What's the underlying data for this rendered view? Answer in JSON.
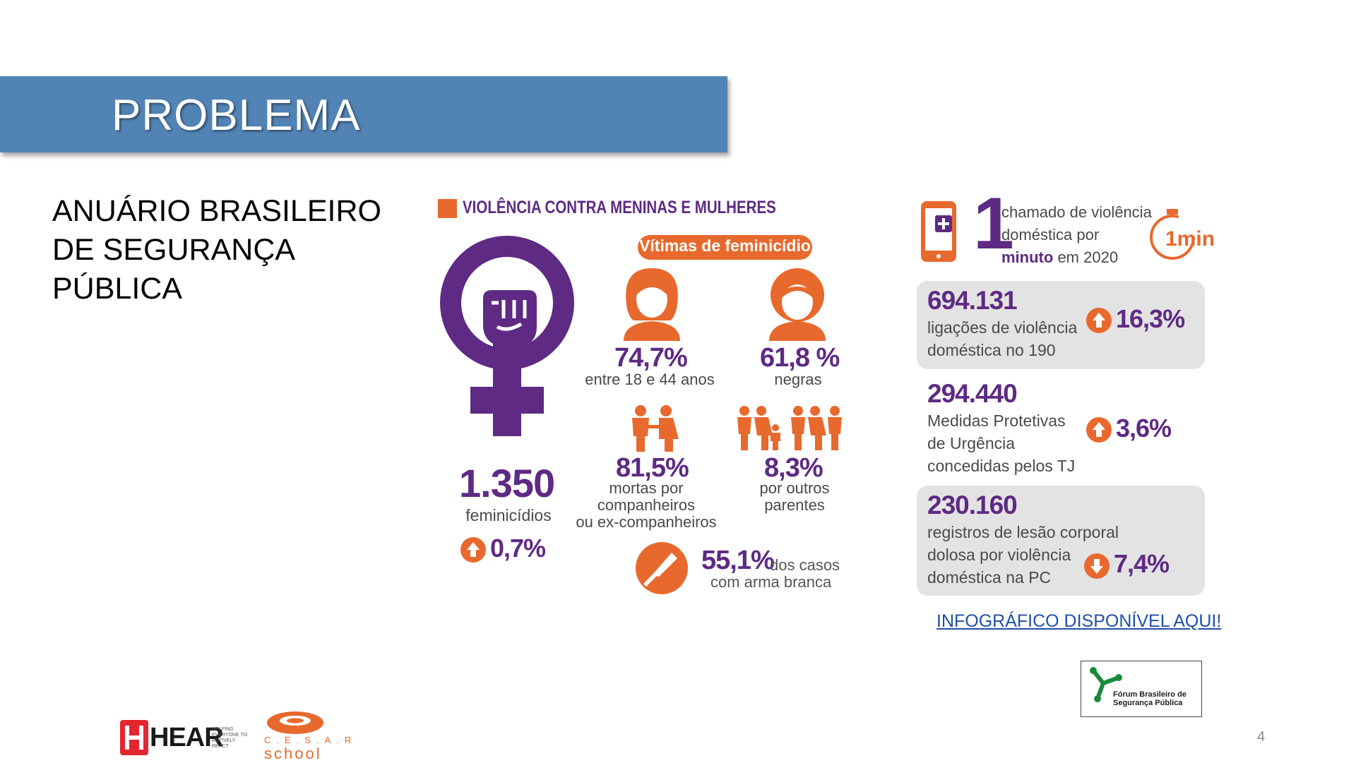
{
  "slide": {
    "title": "PROBLEMA",
    "subtitle_lines": [
      "ANUÁRIO BRASILEIRO",
      "DE SEGURANÇA",
      "PÚBLICA"
    ],
    "page_number": "4",
    "link_text": "INFOGRÁFICO DISPONÍVEL AQUI!"
  },
  "infographic": {
    "header": "VIOLÊNCIA CONTRA MENINAS E MULHERES",
    "victims_pill": "Vítimas de feminicídio",
    "femicides": {
      "value": "1.350",
      "label": "feminicídios",
      "change": "0,7%",
      "direction": "up"
    },
    "age": {
      "value": "74,7%",
      "label": "entre 18 e 44 anos"
    },
    "race": {
      "value": "61,8 %",
      "label": "negras"
    },
    "partners": {
      "value": "81,5%",
      "label_lines": [
        "mortas por",
        "companheiros",
        "ou ex-companheiros"
      ]
    },
    "relatives": {
      "value": "8,3%",
      "label_lines": [
        "por outros",
        "parentes"
      ]
    },
    "weapon": {
      "value": "55,1%",
      "label_line1": "dos casos",
      "label_line2": "com arma branca"
    },
    "call_rate": {
      "number": "1",
      "line1": "chamado de violência",
      "line2": "doméstica por",
      "line3_bold": "minuto",
      "line3_rest": " em 2020",
      "clock_label": "1min"
    },
    "calls_190": {
      "value": "694.131",
      "label_lines": [
        "ligações de violência",
        "doméstica no 190"
      ],
      "change": "16,3%",
      "direction": "up"
    },
    "protective": {
      "value": "294.440",
      "label_lines": [
        "Medidas Protetivas",
        "de Urgência",
        "concedidas pelos TJ"
      ],
      "change": "3,6%",
      "direction": "up"
    },
    "injury": {
      "value": "230.160",
      "label_lines": [
        "registros de lesão corporal",
        "dolosa por violência",
        "doméstica na PC"
      ],
      "change": "7,4%",
      "direction": "down"
    }
  },
  "logos": {
    "fbsp_line1": "Fórum Brasileiro de",
    "fbsp_line2": "Segurança Pública",
    "hear": "HEAR",
    "hear_tagline": [
      "HELPING",
      "EVERYONE TO",
      "ACTIVELY",
      "REACT"
    ],
    "cesar": "C.E.S.A.R",
    "school": "school"
  },
  "colors": {
    "banner": "#5283b5",
    "purple": "#5e2a84",
    "orange": "#e8692d",
    "box_gray": "#e3e3e4",
    "link": "#1f4fa8"
  }
}
